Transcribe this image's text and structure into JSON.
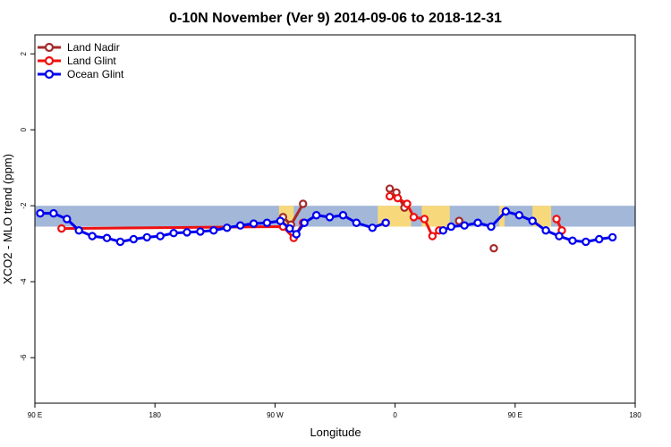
{
  "chart_data": {
    "type": "line",
    "title": "0-10N November (Ver 9)   2014-09-06 to 2018-12-31",
    "xlabel": "Longitude",
    "ylabel": "XCO2 - MLO trend (ppm)",
    "xlim": [
      -90,
      360
    ],
    "ylim": [
      -7.2,
      2.5
    ],
    "x_ticks": [
      {
        "value": -90,
        "label": "90 E"
      },
      {
        "value": 0,
        "label": "180"
      },
      {
        "value": 90,
        "label": "90 W"
      },
      {
        "value": 180,
        "label": "0"
      },
      {
        "value": 270,
        "label": "90 E"
      },
      {
        "value": 360,
        "label": "180"
      }
    ],
    "y_ticks": [
      2,
      0,
      -2,
      -4,
      -6
    ],
    "band": {
      "y_low": -2.55,
      "y_high": -2.0,
      "color": "#a3b7d8",
      "land_color": "#f7d97c"
    },
    "land_patches": [
      {
        "x0": 93,
        "x1": 104
      },
      {
        "x0": 167,
        "x1": 192
      },
      {
        "x0": 200,
        "x1": 221
      },
      {
        "x0": 258,
        "x1": 262
      },
      {
        "x0": 283,
        "x1": 297
      }
    ],
    "legend": {
      "position": "top-left"
    },
    "series": [
      {
        "name": "Land Nadir",
        "color": "#a52a2a",
        "segments": [
          [
            [
              96,
              -2.3
            ],
            [
              102,
              -2.5
            ],
            [
              111,
              -1.95
            ]
          ],
          [
            [
              176,
              -1.55
            ],
            [
              181,
              -1.65
            ],
            [
              187,
              -2.05
            ]
          ],
          [
            [
              228,
              -2.4
            ]
          ],
          [
            [
              254,
              -3.12
            ]
          ]
        ]
      },
      {
        "name": "Land Glint",
        "color": "#ee1111",
        "segments": [
          [
            [
              -70,
              -2.6
            ],
            [
              96,
              -2.55
            ],
            [
              104,
              -2.85
            ],
            [
              111,
              -2.45
            ]
          ],
          [
            [
              176,
              -1.75
            ],
            [
              182,
              -1.8
            ],
            [
              189,
              -1.95
            ],
            [
              194,
              -2.3
            ],
            [
              202,
              -2.35
            ],
            [
              208,
              -2.8
            ],
            [
              213,
              -2.65
            ]
          ],
          [
            [
              301,
              -2.35
            ],
            [
              305,
              -2.65
            ]
          ]
        ]
      },
      {
        "name": "Ocean Glint",
        "color": "#0000ee",
        "segments": [
          [
            [
              -86,
              -2.2
            ],
            [
              -76,
              -2.2
            ],
            [
              -66,
              -2.35
            ],
            [
              -57,
              -2.65
            ],
            [
              -47,
              -2.8
            ],
            [
              -36,
              -2.85
            ],
            [
              -26,
              -2.95
            ],
            [
              -16,
              -2.88
            ],
            [
              -6,
              -2.83
            ],
            [
              4,
              -2.8
            ],
            [
              14,
              -2.72
            ],
            [
              24,
              -2.7
            ],
            [
              34,
              -2.68
            ],
            [
              44,
              -2.65
            ],
            [
              54,
              -2.58
            ],
            [
              64,
              -2.52
            ],
            [
              74,
              -2.47
            ],
            [
              84,
              -2.45
            ],
            [
              94,
              -2.4
            ],
            [
              101,
              -2.6
            ],
            [
              106,
              -2.75
            ],
            [
              112,
              -2.45
            ],
            [
              121,
              -2.25
            ],
            [
              131,
              -2.3
            ],
            [
              141,
              -2.25
            ],
            [
              151,
              -2.45
            ],
            [
              163,
              -2.58
            ],
            [
              173,
              -2.45
            ]
          ],
          [
            [
              216,
              -2.65
            ],
            [
              222,
              -2.55
            ],
            [
              232,
              -2.52
            ],
            [
              242,
              -2.45
            ],
            [
              252,
              -2.55
            ],
            [
              263,
              -2.15
            ],
            [
              273,
              -2.25
            ],
            [
              283,
              -2.4
            ],
            [
              293,
              -2.65
            ],
            [
              303,
              -2.8
            ],
            [
              313,
              -2.92
            ],
            [
              323,
              -2.95
            ],
            [
              333,
              -2.88
            ],
            [
              343,
              -2.83
            ]
          ]
        ]
      }
    ]
  }
}
